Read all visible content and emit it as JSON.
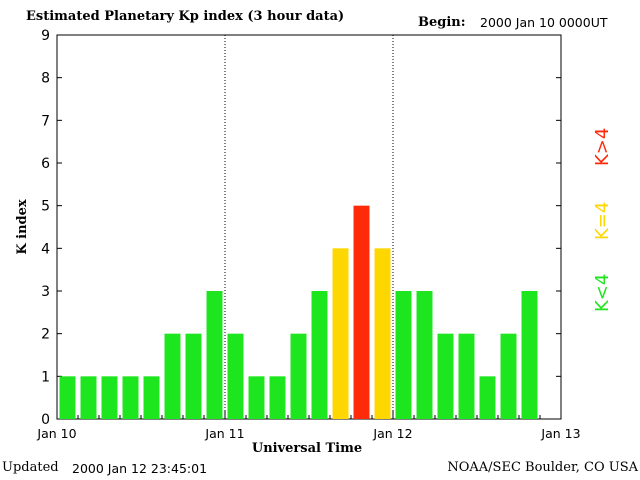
{
  "header": {
    "title": "Estimated Planetary Kp index (3 hour data)",
    "begin_label": "Begin:",
    "begin_value": "2000 Jan 10 0000UT"
  },
  "footer": {
    "updated_label": "Updated",
    "updated_value": "2000 Jan 12 23:45:01",
    "credit": "NOAA/SEC Boulder, CO USA"
  },
  "legend": {
    "low": "K<4",
    "mid": "K=4",
    "high": "K>4"
  },
  "colors": {
    "low": "#1ee61e",
    "mid": "#ffd700",
    "high": "#ff2a0a"
  },
  "chart_data": {
    "type": "bar",
    "title": "Estimated Planetary Kp index (3 hour data)",
    "xlabel": "Universal Time",
    "ylabel": "K index",
    "ylim": [
      0,
      9
    ],
    "yticks": [
      0,
      1,
      2,
      3,
      4,
      5,
      6,
      7,
      8,
      9
    ],
    "xticks": [
      "Jan 10",
      "Jan 11",
      "Jan 12",
      "Jan 13"
    ],
    "x_unit": "3-hour interval",
    "x_range_intervals": [
      0,
      24
    ],
    "day_separators_at_interval": [
      8,
      16
    ],
    "values": [
      1,
      1,
      1,
      1,
      1,
      2,
      2,
      3,
      2,
      1,
      1,
      2,
      3,
      4,
      5,
      4,
      3,
      3,
      2,
      2,
      1,
      2,
      3
    ]
  }
}
